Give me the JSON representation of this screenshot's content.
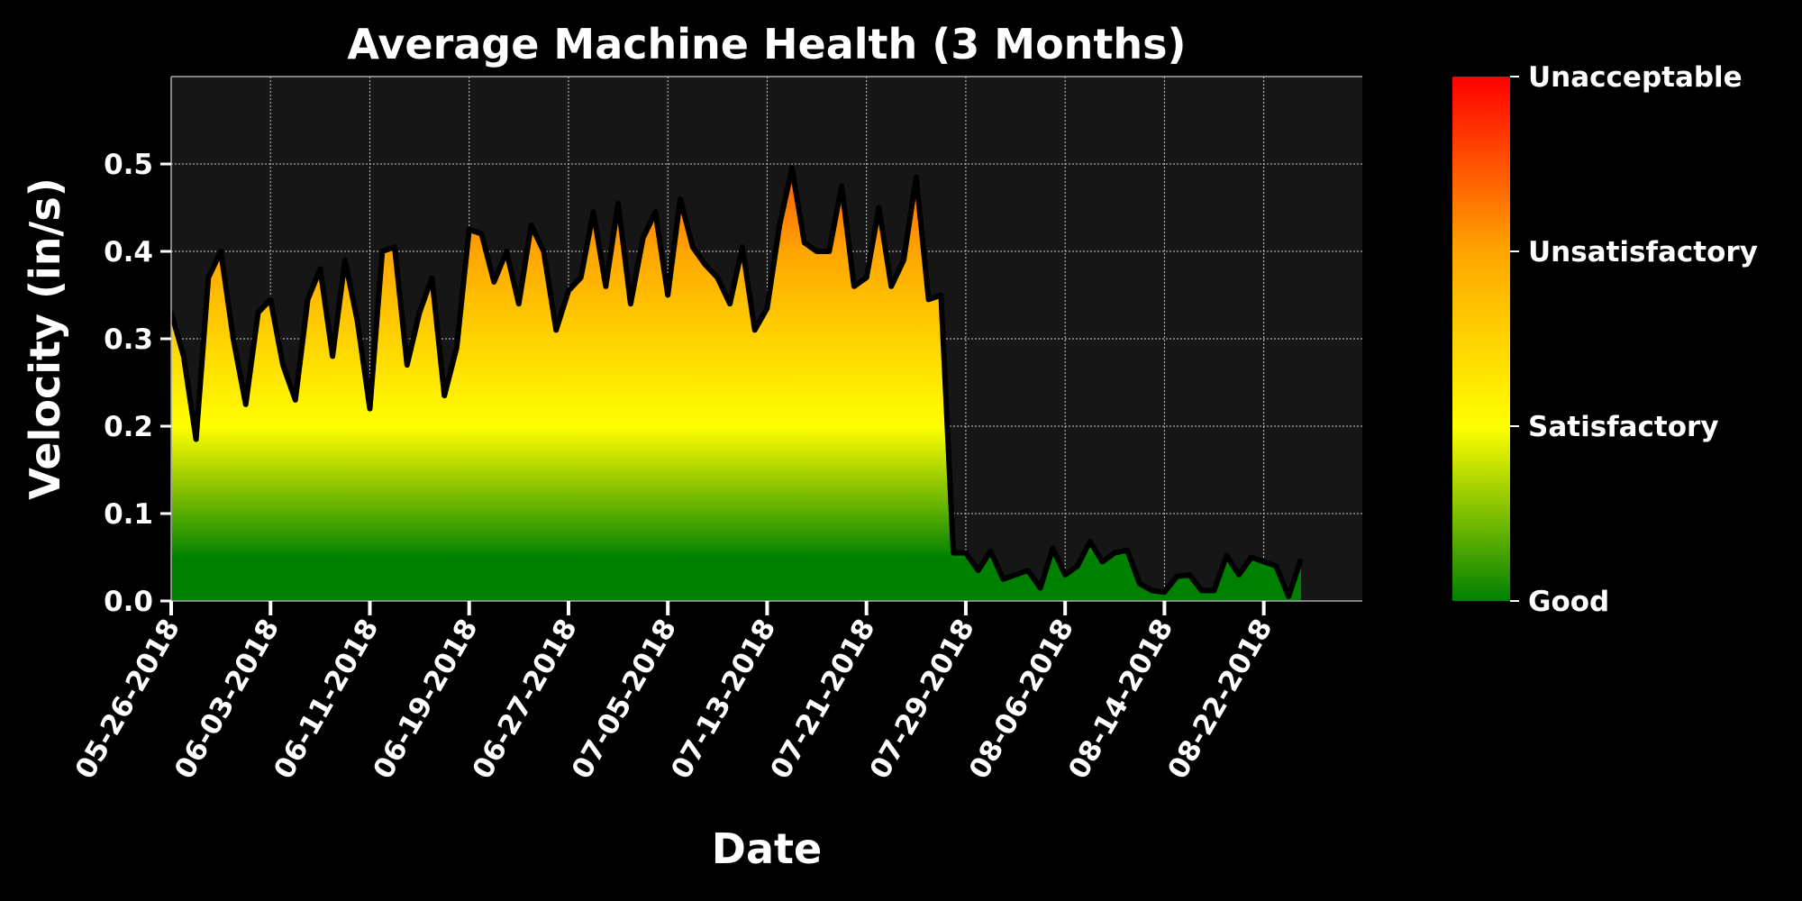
{
  "chart_data": {
    "type": "area",
    "title": "Average Machine Health (3 Months)",
    "xlabel": "Date",
    "ylabel": "Velocity (in/s)",
    "ylim": [
      0,
      0.6
    ],
    "grid": true,
    "y_ticks": [
      "0.0",
      "0.1",
      "0.2",
      "0.3",
      "0.4",
      "0.5"
    ],
    "x_ticks": [
      "05-26-2018",
      "06-03-2018",
      "06-11-2018",
      "06-19-2018",
      "06-27-2018",
      "07-05-2018",
      "07-13-2018",
      "07-21-2018",
      "07-29-2018",
      "08-06-2018",
      "08-14-2018",
      "08-22-2018"
    ],
    "x_start": "05-26-2018",
    "x_end": "08-29-2018",
    "colorbar": {
      "colors": [
        "#008000",
        "#ffff00",
        "#ffa500",
        "#ff0000"
      ],
      "labels": [
        "Good",
        "Satisfactory",
        "Unsatisfactory",
        "Unacceptable"
      ]
    },
    "series": [
      {
        "color": "#000000",
        "points": [
          [
            "05-26-2018",
            0.33
          ],
          [
            "05-27-2018",
            0.28
          ],
          [
            "05-28-2018",
            0.185
          ],
          [
            "05-29-2018",
            0.37
          ],
          [
            "05-30-2018",
            0.4
          ],
          [
            "05-31-2018",
            0.3
          ],
          [
            "06-01-2018",
            0.225
          ],
          [
            "06-02-2018",
            0.33
          ],
          [
            "06-03-2018",
            0.345
          ],
          [
            "06-04-2018",
            0.27
          ],
          [
            "06-05-2018",
            0.23
          ],
          [
            "06-06-2018",
            0.345
          ],
          [
            "06-07-2018",
            0.38
          ],
          [
            "06-08-2018",
            0.28
          ],
          [
            "06-09-2018",
            0.39
          ],
          [
            "06-10-2018",
            0.32
          ],
          [
            "06-11-2018",
            0.22
          ],
          [
            "06-12-2018",
            0.4
          ],
          [
            "06-13-2018",
            0.405
          ],
          [
            "06-14-2018",
            0.27
          ],
          [
            "06-15-2018",
            0.33
          ],
          [
            "06-16-2018",
            0.37
          ],
          [
            "06-17-2018",
            0.235
          ],
          [
            "06-18-2018",
            0.29
          ],
          [
            "06-19-2018",
            0.425
          ],
          [
            "06-20-2018",
            0.42
          ],
          [
            "06-21-2018",
            0.365
          ],
          [
            "06-22-2018",
            0.4
          ],
          [
            "06-23-2018",
            0.34
          ],
          [
            "06-24-2018",
            0.43
          ],
          [
            "06-25-2018",
            0.4
          ],
          [
            "06-26-2018",
            0.31
          ],
          [
            "06-27-2018",
            0.355
          ],
          [
            "06-28-2018",
            0.37
          ],
          [
            "06-29-2018",
            0.445
          ],
          [
            "06-30-2018",
            0.36
          ],
          [
            "07-01-2018",
            0.455
          ],
          [
            "07-02-2018",
            0.34
          ],
          [
            "07-03-2018",
            0.415
          ],
          [
            "07-04-2018",
            0.445
          ],
          [
            "07-05-2018",
            0.35
          ],
          [
            "07-06-2018",
            0.46
          ],
          [
            "07-07-2018",
            0.405
          ],
          [
            "07-08-2018",
            0.385
          ],
          [
            "07-09-2018",
            0.37
          ],
          [
            "07-10-2018",
            0.34
          ],
          [
            "07-11-2018",
            0.405
          ],
          [
            "07-12-2018",
            0.31
          ],
          [
            "07-13-2018",
            0.335
          ],
          [
            "07-14-2018",
            0.43
          ],
          [
            "07-15-2018",
            0.495
          ],
          [
            "07-16-2018",
            0.41
          ],
          [
            "07-17-2018",
            0.4
          ],
          [
            "07-18-2018",
            0.4
          ],
          [
            "07-19-2018",
            0.475
          ],
          [
            "07-20-2018",
            0.36
          ],
          [
            "07-21-2018",
            0.37
          ],
          [
            "07-22-2018",
            0.45
          ],
          [
            "07-23-2018",
            0.36
          ],
          [
            "07-24-2018",
            0.39
          ],
          [
            "07-25-2018",
            0.485
          ],
          [
            "07-26-2018",
            0.345
          ],
          [
            "07-27-2018",
            0.35
          ],
          [
            "07-28-2018",
            0.055
          ],
          [
            "07-29-2018",
            0.055
          ],
          [
            "07-30-2018",
            0.035
          ],
          [
            "07-31-2018",
            0.057
          ],
          [
            "08-01-2018",
            0.025
          ],
          [
            "08-02-2018",
            0.03
          ],
          [
            "08-03-2018",
            0.035
          ],
          [
            "08-04-2018",
            0.015
          ],
          [
            "08-05-2018",
            0.06
          ],
          [
            "08-06-2018",
            0.03
          ],
          [
            "08-07-2018",
            0.04
          ],
          [
            "08-08-2018",
            0.068
          ],
          [
            "08-09-2018",
            0.045
          ],
          [
            "08-10-2018",
            0.055
          ],
          [
            "08-11-2018",
            0.058
          ],
          [
            "08-12-2018",
            0.02
          ],
          [
            "08-13-2018",
            0.012
          ],
          [
            "08-14-2018",
            0.01
          ],
          [
            "08-15-2018",
            0.028
          ],
          [
            "08-16-2018",
            0.03
          ],
          [
            "08-17-2018",
            0.012
          ],
          [
            "08-18-2018",
            0.012
          ],
          [
            "08-19-2018",
            0.052
          ],
          [
            "08-20-2018",
            0.03
          ],
          [
            "08-21-2018",
            0.05
          ],
          [
            "08-22-2018",
            0.045
          ],
          [
            "08-23-2018",
            0.04
          ],
          [
            "08-24-2018",
            0.005
          ],
          [
            "08-25-2018",
            0.048
          ]
        ]
      }
    ]
  }
}
